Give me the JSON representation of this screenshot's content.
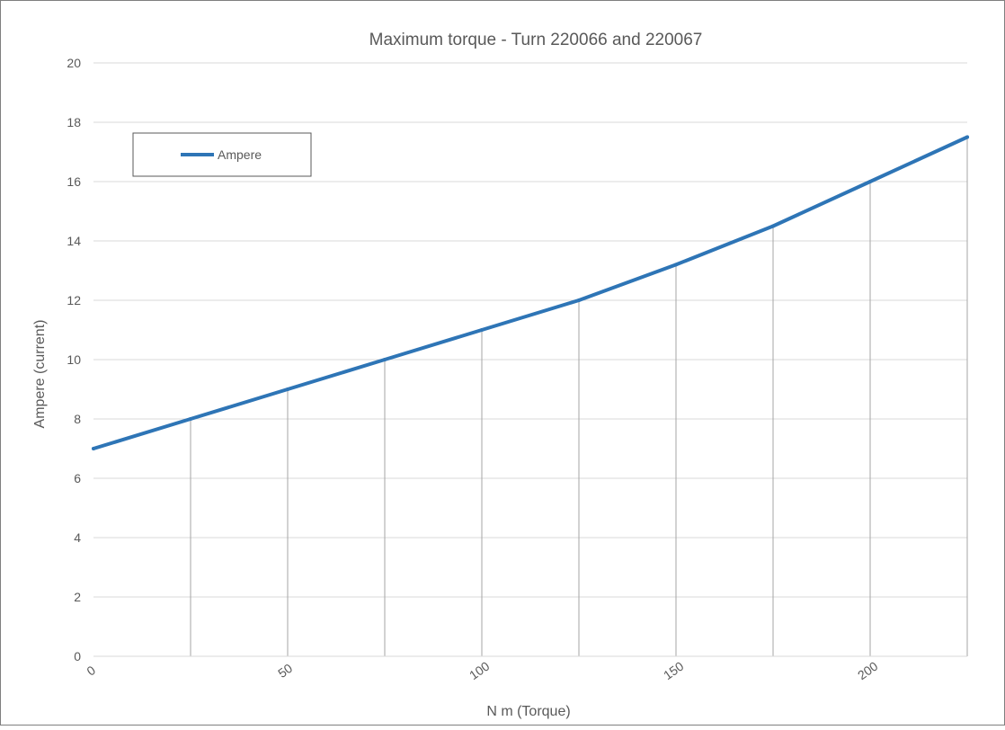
{
  "chart_data": {
    "type": "line",
    "title": "Maximum torque - Turn 220066 and 220067",
    "xlabel": "N m (Torque)",
    "ylabel": "Ampere (current)",
    "xlim": [
      0,
      225
    ],
    "ylim": [
      0,
      20
    ],
    "x_ticks": [
      0,
      50,
      100,
      150,
      200
    ],
    "y_ticks": [
      0,
      2,
      4,
      6,
      8,
      10,
      12,
      14,
      16,
      18,
      20
    ],
    "horizontal_grid": true,
    "vertical_drop_lines": true,
    "legend_position": "top-left",
    "series": [
      {
        "name": "Ampere",
        "color": "#2e75b6",
        "x": [
          0,
          25,
          50,
          75,
          100,
          125,
          150,
          175,
          200,
          225
        ],
        "y": [
          7,
          8,
          9,
          10,
          11,
          12,
          13.2,
          14.5,
          16,
          17.5
        ]
      }
    ]
  }
}
